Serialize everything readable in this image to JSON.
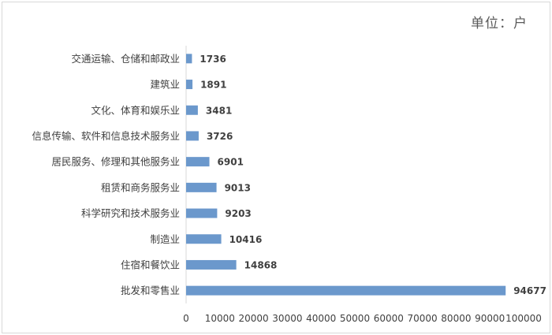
{
  "unit_label": "单位：户",
  "colors": {
    "bar": "#6b98cc",
    "grid": "#d9d9d9",
    "text": "#404040"
  },
  "chart_data": {
    "type": "bar",
    "orientation": "horizontal",
    "categories": [
      "交通运输、仓储和邮政业",
      "建筑业",
      "文化、体育和娱乐业",
      "信息传输、软件和信息技术服务业",
      "居民服务、修理和其他服务业",
      "租赁和商务服务业",
      "科学研究和技术服务业",
      "制造业",
      "住宿和餐饮业",
      "批发和零售业"
    ],
    "values": [
      1736,
      1891,
      3481,
      3726,
      6901,
      9013,
      9203,
      10416,
      14868,
      94677
    ],
    "xlim": [
      0,
      100000
    ],
    "xticks": [
      0,
      10000,
      20000,
      30000,
      40000,
      50000,
      60000,
      70000,
      80000,
      90000,
      100000
    ],
    "xtick_labels": [
      "0",
      "10000",
      "20000",
      "30000",
      "40000",
      "50000",
      "60000",
      "70000",
      "80000",
      "90000",
      "100000"
    ],
    "data_labels": true,
    "grid": false,
    "legend": "none"
  }
}
